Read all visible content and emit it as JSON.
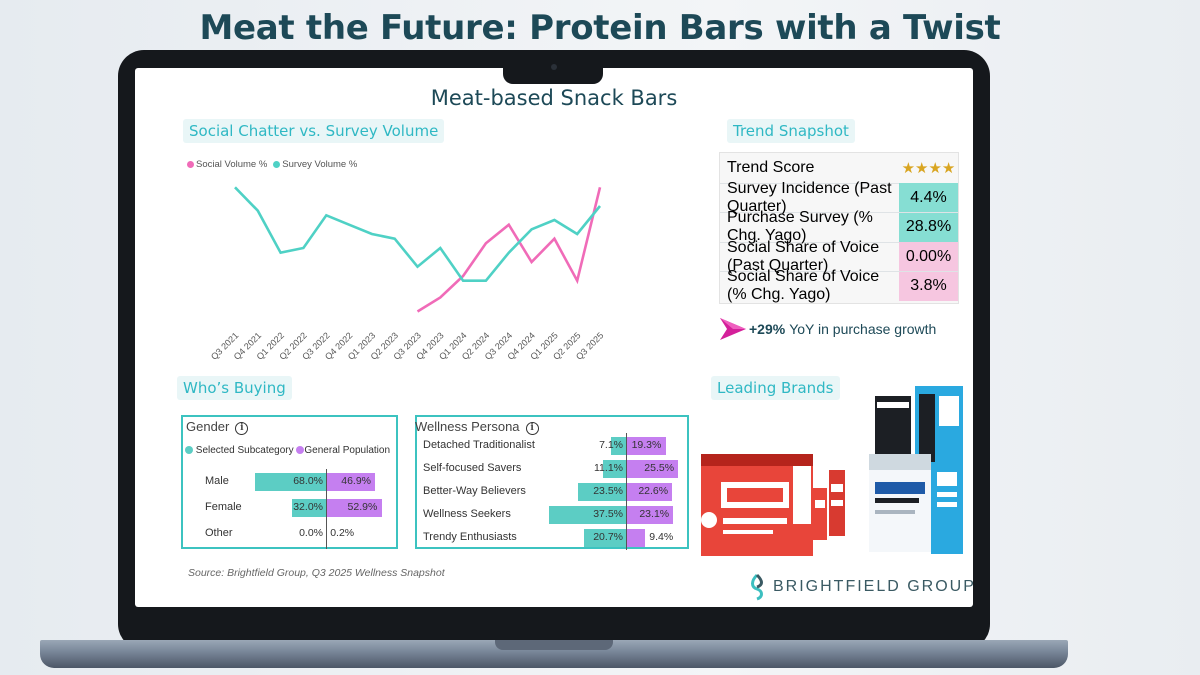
{
  "page": {
    "title": "Meat the Future: Protein Bars with a Twist"
  },
  "screen": {
    "title": "Meat-based Snack Bars",
    "sections": {
      "chatter": "Social Chatter vs. Survey Volume",
      "snapshot": "Trend Snapshot",
      "buying": "Who’s Buying",
      "brands": "Leading Brands"
    },
    "source": "Source: Brightfield Group, Q3 2025 Wellness Snapshot",
    "logo_text": "BRIGHTFIELD GROUP"
  },
  "snapshot": {
    "trend_label": "Trend Score",
    "stars": "★★★★",
    "stars_count": 4,
    "rows": [
      {
        "label": "Survey Incidence (Past Quarter)",
        "value": "4.4%",
        "color": "#86ded3"
      },
      {
        "label": "Purchase Survey (% Chg. Yago)",
        "value": "28.8%",
        "color": "#86ded3"
      },
      {
        "label": "Social Share of Voice (Past Quarter)",
        "value": "0.00%",
        "color": "#f6c6e0"
      },
      {
        "label": "Social Share of Voice (% Chg. Yago)",
        "value": "3.8%",
        "color": "#f6c6e0"
      }
    ],
    "growth_bold": "+29%",
    "growth_text": "YoY in purchase growth"
  },
  "gender": {
    "title": "Gender",
    "legend_a": "Selected Subcategory",
    "legend_b": "General Population",
    "rows": [
      {
        "label": "Male",
        "a": "68.0%",
        "b": "46.9%",
        "a_val": 68.0,
        "b_val": 46.9
      },
      {
        "label": "Female",
        "a": "32.0%",
        "b": "52.9%",
        "a_val": 32.0,
        "b_val": 52.9
      },
      {
        "label": "Other",
        "a": "0.0%",
        "b": "0.2%",
        "a_val": 0.0,
        "b_val": 0.2
      }
    ]
  },
  "wellness": {
    "title": "Wellness Persona",
    "rows": [
      {
        "label": "Detached Traditionalist",
        "a": "7.1%",
        "b": "19.3%",
        "a_val": 7.1,
        "b_val": 19.3
      },
      {
        "label": "Self-focused Savers",
        "a": "11.1%",
        "b": "25.5%",
        "a_val": 11.1,
        "b_val": 25.5
      },
      {
        "label": "Better-Way Believers",
        "a": "23.5%",
        "b": "22.6%",
        "a_val": 23.5,
        "b_val": 22.6
      },
      {
        "label": "Wellness Seekers",
        "a": "37.5%",
        "b": "23.1%",
        "a_val": 37.5,
        "b_val": 23.1
      },
      {
        "label": "Trendy Enthusiasts",
        "a": "20.7%",
        "b": "9.4%",
        "a_val": 20.7,
        "b_val": 9.4
      }
    ]
  },
  "chart_data": {
    "type": "line",
    "x": [
      "Q3 2021",
      "Q4 2021",
      "Q1 2022",
      "Q2 2022",
      "Q3 2022",
      "Q4 2022",
      "Q1 2023",
      "Q2 2023",
      "Q3 2023",
      "Q4 2023",
      "Q1 2024",
      "Q2 2024",
      "Q3 2024",
      "Q4 2024",
      "Q1 2025",
      "Q2 2025",
      "Q3 2025"
    ],
    "series": [
      {
        "name": "Social Volume %",
        "color": "#f06bb8",
        "values": [
          null,
          null,
          null,
          null,
          null,
          null,
          null,
          null,
          -0.3,
          1.2,
          3.5,
          7.0,
          9.0,
          5.0,
          7.5,
          3.0,
          13.0
        ]
      },
      {
        "name": "Survey Volume %",
        "color": "#4fd1c5",
        "values": [
          13.0,
          10.5,
          6.0,
          6.5,
          10.0,
          9.0,
          8.0,
          7.5,
          4.5,
          6.5,
          3.0,
          3.0,
          6.0,
          8.5,
          9.5,
          8.0,
          11.0
        ]
      }
    ],
    "ylim": [
      -1,
      14
    ],
    "legend": "top-left",
    "grid": false
  }
}
